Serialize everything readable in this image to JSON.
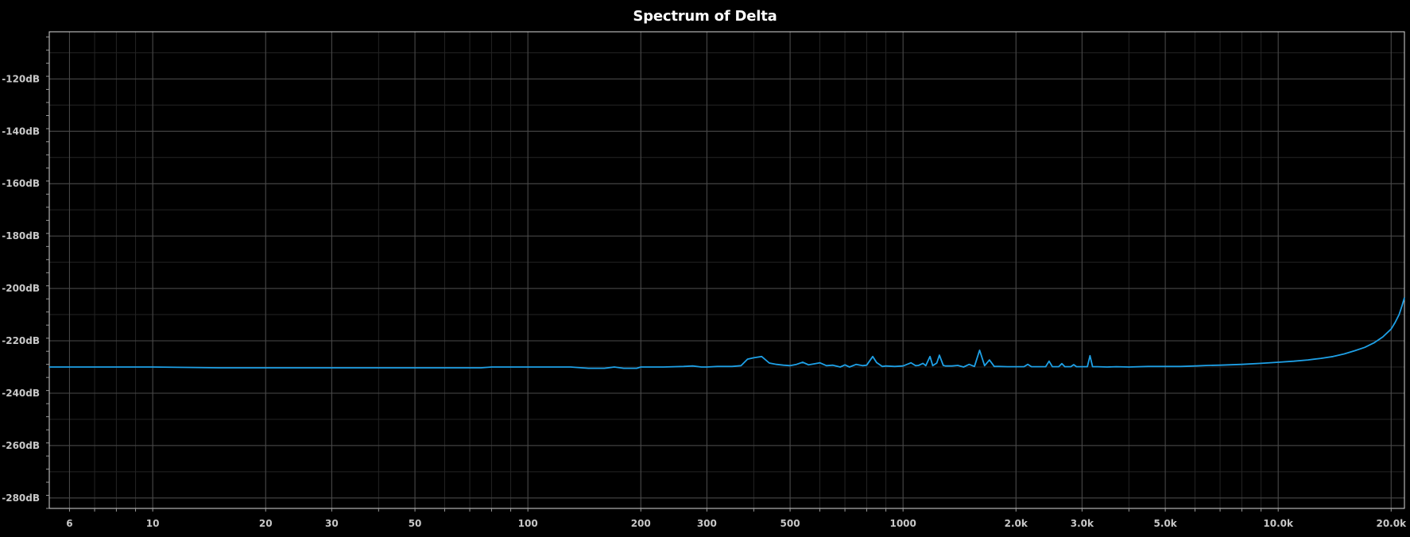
{
  "chart_data": {
    "type": "line",
    "title": "Spectrum of Delta",
    "xlabel": "",
    "ylabel": "",
    "x_scale": "log",
    "xlim": [
      5.3,
      21700
    ],
    "ylim": [
      -284,
      -102
    ],
    "grid": true,
    "y_ticks": [
      -120,
      -140,
      -160,
      -180,
      -200,
      -220,
      -240,
      -260,
      -280
    ],
    "y_tick_labels": [
      "-120dB",
      "-140dB",
      "-160dB",
      "-180dB",
      "-200dB",
      "-220dB",
      "-240dB",
      "-260dB",
      "-280dB"
    ],
    "x_ticks": [
      6,
      10,
      20,
      30,
      50,
      100,
      200,
      300,
      500,
      1000,
      2000,
      3000,
      5000,
      10000,
      20000
    ],
    "x_tick_labels": [
      "6",
      "10",
      "20",
      "30",
      "50",
      "100",
      "200",
      "300",
      "500",
      "1000",
      "2.0k",
      "3.0k",
      "5.0k",
      "10.0k",
      "20.0k"
    ],
    "series": [
      {
        "color": "#1ea0e6",
        "x": [
          5.3,
          10,
          15,
          20,
          30,
          50,
          75,
          80,
          100,
          130,
          145,
          160,
          170,
          180,
          195,
          200,
          230,
          260,
          275,
          290,
          300,
          320,
          350,
          370,
          385,
          400,
          420,
          440,
          460,
          480,
          500,
          520,
          540,
          560,
          580,
          600,
          625,
          650,
          680,
          700,
          720,
          750,
          780,
          800,
          830,
          850,
          880,
          900,
          950,
          1000,
          1050,
          1080,
          1100,
          1130,
          1150,
          1180,
          1200,
          1230,
          1250,
          1280,
          1300,
          1350,
          1400,
          1450,
          1500,
          1550,
          1600,
          1650,
          1700,
          1750,
          1800,
          1900,
          2000,
          2100,
          2150,
          2200,
          2300,
          2400,
          2450,
          2500,
          2600,
          2650,
          2700,
          2800,
          2850,
          2900,
          3000,
          3100,
          3150,
          3200,
          3300,
          3500,
          3700,
          4000,
          4500,
          5000,
          5500,
          6000,
          6500,
          7000,
          8000,
          9000,
          10000,
          11000,
          12000,
          13000,
          14000,
          15000,
          16000,
          17000,
          18000,
          19000,
          20000,
          20500,
          21000,
          21400,
          21700
        ],
        "y": [
          -230,
          -230,
          -230.3,
          -230.3,
          -230.3,
          -230.3,
          -230.3,
          -230,
          -230,
          -230,
          -230.5,
          -230.5,
          -230,
          -230.5,
          -230.5,
          -230,
          -230,
          -229.8,
          -229.6,
          -230,
          -230,
          -229.8,
          -229.8,
          -229.5,
          -227,
          -226.5,
          -226,
          -228.5,
          -229,
          -229.3,
          -229.5,
          -229,
          -228.2,
          -229.2,
          -228.8,
          -228.4,
          -229.5,
          -229.3,
          -230,
          -229.2,
          -230,
          -229,
          -229.5,
          -229.3,
          -226,
          -228.3,
          -229.8,
          -229.6,
          -229.8,
          -229.6,
          -228.4,
          -229.5,
          -229.4,
          -228.6,
          -229.5,
          -226,
          -229.5,
          -228.5,
          -225.5,
          -229.4,
          -229.6,
          -229.6,
          -229.4,
          -230,
          -229,
          -229.8,
          -223.6,
          -229.5,
          -227.3,
          -229.8,
          -229.8,
          -229.9,
          -229.9,
          -229.9,
          -229,
          -229.9,
          -229.9,
          -229.9,
          -227.8,
          -229.9,
          -229.9,
          -228.7,
          -229.9,
          -229.9,
          -229.1,
          -229.9,
          -229.9,
          -229.9,
          -225.7,
          -229.9,
          -229.9,
          -230,
          -229.9,
          -230,
          -229.8,
          -229.8,
          -229.8,
          -229.6,
          -229.4,
          -229.3,
          -229,
          -228.6,
          -228.2,
          -227.8,
          -227.3,
          -226.7,
          -226,
          -225,
          -223.8,
          -222.5,
          -220.8,
          -218.5,
          -215.5,
          -213,
          -210,
          -206.5,
          -203.5
        ]
      }
    ]
  }
}
